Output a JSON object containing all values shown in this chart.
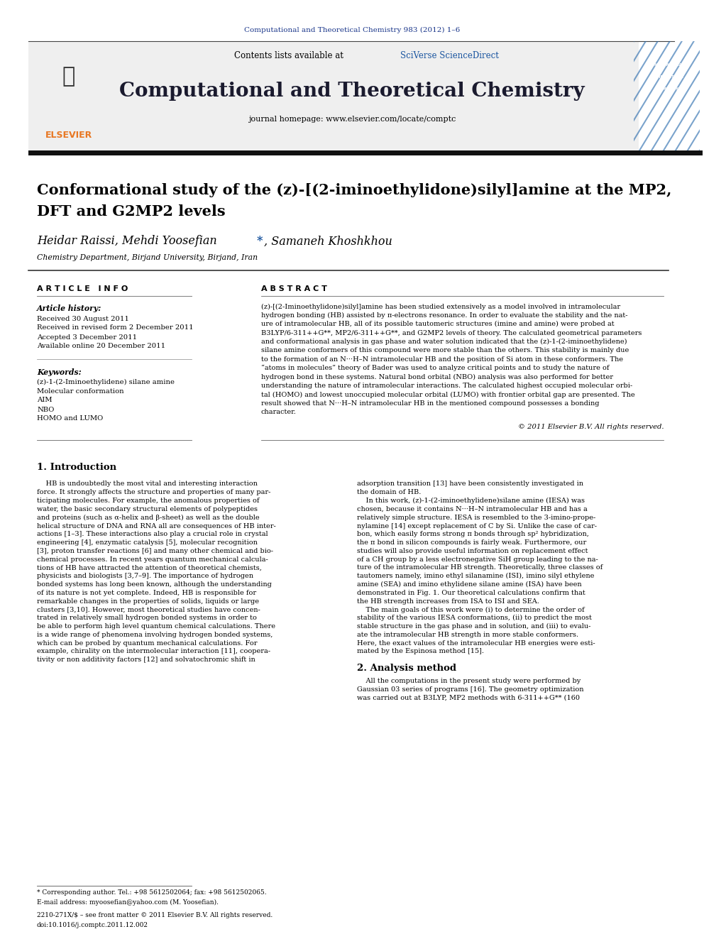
{
  "journal_citation": "Computational and Theoretical Chemistry 983 (2012) 1–6",
  "journal_name": "Computational and Theoretical Chemistry",
  "contents_text": "Contents lists available at SciVerse ScienceDirect",
  "journal_homepage": "journal homepage: www.elsevier.com/locate/comptc",
  "article_title_line1": "Conformational study of the (z)-[(2-iminoethylidone)silyl]amine at the MP2,",
  "article_title_line2": "DFT and G2MP2 levels",
  "authors_part1": "Heidar Raissi, Mehdi Yoosefian ",
  "authors_star": "*",
  "authors_part2": ", Samaneh Khoshkhou",
  "affiliation": "Chemistry Department, Birjand University, Birjand, Iran",
  "article_info_header": "A R T I C L E   I N F O",
  "abstract_header": "A B S T R A C T",
  "article_history_label": "Article history:",
  "received_1": "Received 30 August 2011",
  "received_revised": "Received in revised form 2 December 2011",
  "accepted": "Accepted 3 December 2011",
  "available_online": "Available online 20 December 2011",
  "keywords_label": "Keywords:",
  "keyword_1": "(z)-1-(2-Iminoethylidene) silane amine",
  "keyword_2": "Molecular conformation",
  "keyword_3": "AIM",
  "keyword_4": "NBO",
  "keyword_5": "HOMO and LUMO",
  "copyright": "© 2011 Elsevier B.V. All rights reserved.",
  "section1_title": "1. Introduction",
  "section2_title": "2. Analysis method",
  "footnote_star": "* Corresponding author. Tel.: +98 5612502064; fax: +98 5612502065.",
  "footnote_email": "E-mail address: myoosefian@yahoo.com (M. Yoosefian).",
  "footnote_issn": "2210-271X/$ – see front matter © 2011 Elsevier B.V. All rights reserved.",
  "footnote_doi": "doi:10.1016/j.comptc.2011.12.002",
  "bg_color": "#ffffff",
  "header_bg": "#efefef",
  "dark_bar_color": "#1a1a2e",
  "journal_title_color": "#1a1a2e",
  "citation_color": "#1a368a",
  "link_color": "#1a55a0",
  "text_color": "#000000",
  "elsevier_color": "#e87722",
  "abstract_lines": [
    "(z)-[(2-Iminoethylidone)silyl]amine has been studied extensively as a model involved in intramolecular",
    "hydrogen bonding (HB) assisted by π-electrons resonance. In order to evaluate the stability and the nat-",
    "ure of intramolecular HB, all of its possible tautomeric structures (imine and amine) were probed at",
    "B3LYP/6-311++G**, MP2/6-311++G**, and G2MP2 levels of theory. The calculated geometrical parameters",
    "and conformational analysis in gas phase and water solution indicated that the (z)-1-(2-iminoethylidene)",
    "silane amine conformers of this compound were more stable than the others. This stability is mainly due",
    "to the formation of an N···H–N intramolecular HB and the position of Si atom in these conformers. The",
    "“atoms in molecules” theory of Bader was used to analyze critical points and to study the nature of",
    "hydrogen bond in these systems. Natural bond orbital (NBO) analysis was also performed for better",
    "understanding the nature of intramolecular interactions. The calculated highest occupied molecular orbi-",
    "tal (HOMO) and lowest unoccupied molecular orbital (LUMO) with frontier orbital gap are presented. The",
    "result showed that N···H–N intramolecular HB in the mentioned compound possesses a bonding",
    "character."
  ],
  "intro_lines_left": [
    "    HB is undoubtedly the most vital and interesting interaction",
    "force. It strongly affects the structure and properties of many par-",
    "ticipating molecules. For example, the anomalous properties of",
    "water, the basic secondary structural elements of polypeptides",
    "and proteins (such as α-helix and β-sheet) as well as the double",
    "helical structure of DNA and RNA all are consequences of HB inter-",
    "actions [1–3]. These interactions also play a crucial role in crystal",
    "engineering [4], enzymatic catalysis [5], molecular recognition",
    "[3], proton transfer reactions [6] and many other chemical and bio-",
    "chemical processes. In recent years quantum mechanical calcula-",
    "tions of HB have attracted the attention of theoretical chemists,",
    "physicists and biologists [3,7–9]. The importance of hydrogen",
    "bonded systems has long been known, although the understanding",
    "of its nature is not yet complete. Indeed, HB is responsible for",
    "remarkable changes in the properties of solids, liquids or large",
    "clusters [3,10]. However, most theoretical studies have concen-",
    "trated in relatively small hydrogen bonded systems in order to",
    "be able to perform high level quantum chemical calculations. There",
    "is a wide range of phenomena involving hydrogen bonded systems,",
    "which can be probed by quantum mechanical calculations. For",
    "example, chirality on the intermolecular interaction [11], coopera-",
    "tivity or non additivity factors [12] and solvatochromic shift in"
  ],
  "intro_lines_right": [
    "adsorption transition [13] have been consistently investigated in",
    "the domain of HB.",
    "    In this work, (z)-1-(2-iminoethylidene)silane amine (IESA) was",
    "chosen, because it contains N···H–N intramolecular HB and has a",
    "relatively simple structure. IESA is resembled to the 3-imino-prope-",
    "nylamine [14] except replacement of C by Si. Unlike the case of car-",
    "bon, which easily forms strong π bonds through sp² hybridization,",
    "the π bond in silicon compounds is fairly weak. Furthermore, our",
    "studies will also provide useful information on replacement effect",
    "of a CH group by a less electronegative SiH group leading to the na-",
    "ture of the intramolecular HB strength. Theoretically, three classes of",
    "tautomers namely, imino ethyl silanamine (ISI), imino silyl ethylene",
    "amine (SEA) and imino ethylidene silane amine (ISA) have been",
    "demonstrated in Fig. 1. Our theoretical calculations confirm that",
    "the HB strength increases from ISA to ISI and SEA.",
    "    The main goals of this work were (i) to determine the order of",
    "stability of the various IESA conformations, (ii) to predict the most",
    "stable structure in the gas phase and in solution, and (iii) to evalu-",
    "ate the intramolecular HB strength in more stable conformers.",
    "Here, the exact values of the intramolecular HB energies were esti-",
    "mated by the Espinosa method [15]."
  ],
  "section2_lines": [
    "    All the computations in the present study were performed by",
    "Gaussian 03 series of programs [16]. The geometry optimization",
    "was carried out at B3LYP, MP2 methods with 6-311++G** (160"
  ]
}
